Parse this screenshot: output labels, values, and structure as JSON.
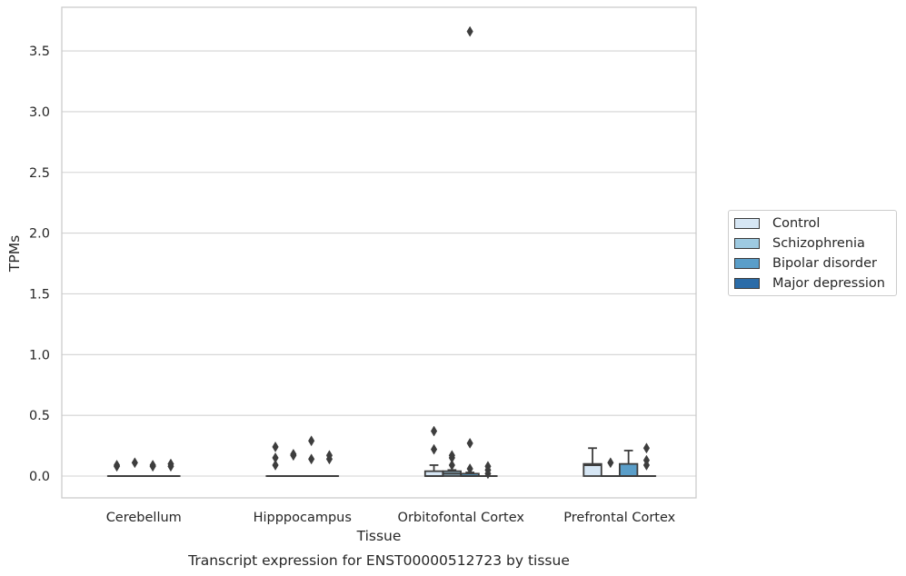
{
  "chart_data": {
    "type": "box",
    "caption": "Transcript expression for ENST00000512723 by tissue",
    "xlabel": "Tissue",
    "ylabel": "TPMs",
    "ylim": [
      -0.18,
      3.84
    ],
    "yticks": [
      "0.0",
      "0.5",
      "1.0",
      "1.5",
      "2.0",
      "2.5",
      "3.0",
      "3.5"
    ],
    "grid": true,
    "legend_position": "right",
    "categories": [
      "Cerebellum",
      "Hipppocampus",
      "Orbitofontal Cortex",
      "Prefrontal Cortex"
    ],
    "series": [
      {
        "name": "Control",
        "color": "#d6e6f4",
        "boxes": [
          {
            "q1": 0.0,
            "median": 0.0,
            "q3": 0.0,
            "whisker_low": 0.0,
            "whisker_high": 0.0,
            "outliers": [
              0.08,
              0.09
            ]
          },
          {
            "q1": 0.0,
            "median": 0.0,
            "q3": 0.0,
            "whisker_low": 0.0,
            "whisker_high": 0.0,
            "outliers": [
              0.09,
              0.15,
              0.24
            ]
          },
          {
            "q1": 0.0,
            "median": 0.0,
            "q3": 0.04,
            "whisker_low": 0.0,
            "whisker_high": 0.09,
            "outliers": [
              0.22,
              0.37
            ]
          },
          {
            "q1": 0.0,
            "median": 0.09,
            "q3": 0.1,
            "whisker_low": 0.0,
            "whisker_high": 0.23,
            "outliers": []
          }
        ]
      },
      {
        "name": "Schizophrenia",
        "color": "#9ecae1",
        "boxes": [
          {
            "q1": 0.0,
            "median": 0.0,
            "q3": 0.0,
            "whisker_low": 0.0,
            "whisker_high": 0.0,
            "outliers": [
              0.11
            ]
          },
          {
            "q1": 0.0,
            "median": 0.0,
            "q3": 0.0,
            "whisker_low": 0.0,
            "whisker_high": 0.0,
            "outliers": [
              0.17,
              0.18
            ]
          },
          {
            "q1": 0.0,
            "median": 0.02,
            "q3": 0.04,
            "whisker_low": 0.0,
            "whisker_high": 0.05,
            "outliers": [
              0.09,
              0.15,
              0.17
            ]
          },
          {
            "q1": 0.0,
            "median": 0.0,
            "q3": 0.0,
            "whisker_low": 0.0,
            "whisker_high": 0.0,
            "outliers": [
              0.11
            ]
          }
        ]
      },
      {
        "name": "Bipolar disorder",
        "color": "#5a9ec9",
        "boxes": [
          {
            "q1": 0.0,
            "median": 0.0,
            "q3": 0.0,
            "whisker_low": 0.0,
            "whisker_high": 0.0,
            "outliers": [
              0.08,
              0.09
            ]
          },
          {
            "q1": 0.0,
            "median": 0.0,
            "q3": 0.0,
            "whisker_low": 0.0,
            "whisker_high": 0.0,
            "outliers": [
              0.14,
              0.29
            ]
          },
          {
            "q1": 0.0,
            "median": 0.0,
            "q3": 0.02,
            "whisker_low": 0.0,
            "whisker_high": 0.03,
            "outliers": [
              0.06,
              0.27,
              3.66
            ]
          },
          {
            "q1": 0.0,
            "median": 0.0,
            "q3": 0.1,
            "whisker_low": 0.0,
            "whisker_high": 0.21,
            "outliers": []
          }
        ]
      },
      {
        "name": "Major depression",
        "color": "#2b6ca8",
        "boxes": [
          {
            "q1": 0.0,
            "median": 0.0,
            "q3": 0.0,
            "whisker_low": 0.0,
            "whisker_high": 0.0,
            "outliers": [
              0.08,
              0.1
            ]
          },
          {
            "q1": 0.0,
            "median": 0.0,
            "q3": 0.0,
            "whisker_low": 0.0,
            "whisker_high": 0.0,
            "outliers": [
              0.14,
              0.17
            ]
          },
          {
            "q1": 0.0,
            "median": 0.0,
            "q3": 0.0,
            "whisker_low": 0.0,
            "whisker_high": 0.0,
            "outliers": [
              0.02,
              0.05,
              0.08
            ]
          },
          {
            "q1": 0.0,
            "median": 0.0,
            "q3": 0.0,
            "whisker_low": 0.0,
            "whisker_high": 0.0,
            "outliers": [
              0.09,
              0.13,
              0.23
            ]
          }
        ]
      }
    ]
  }
}
